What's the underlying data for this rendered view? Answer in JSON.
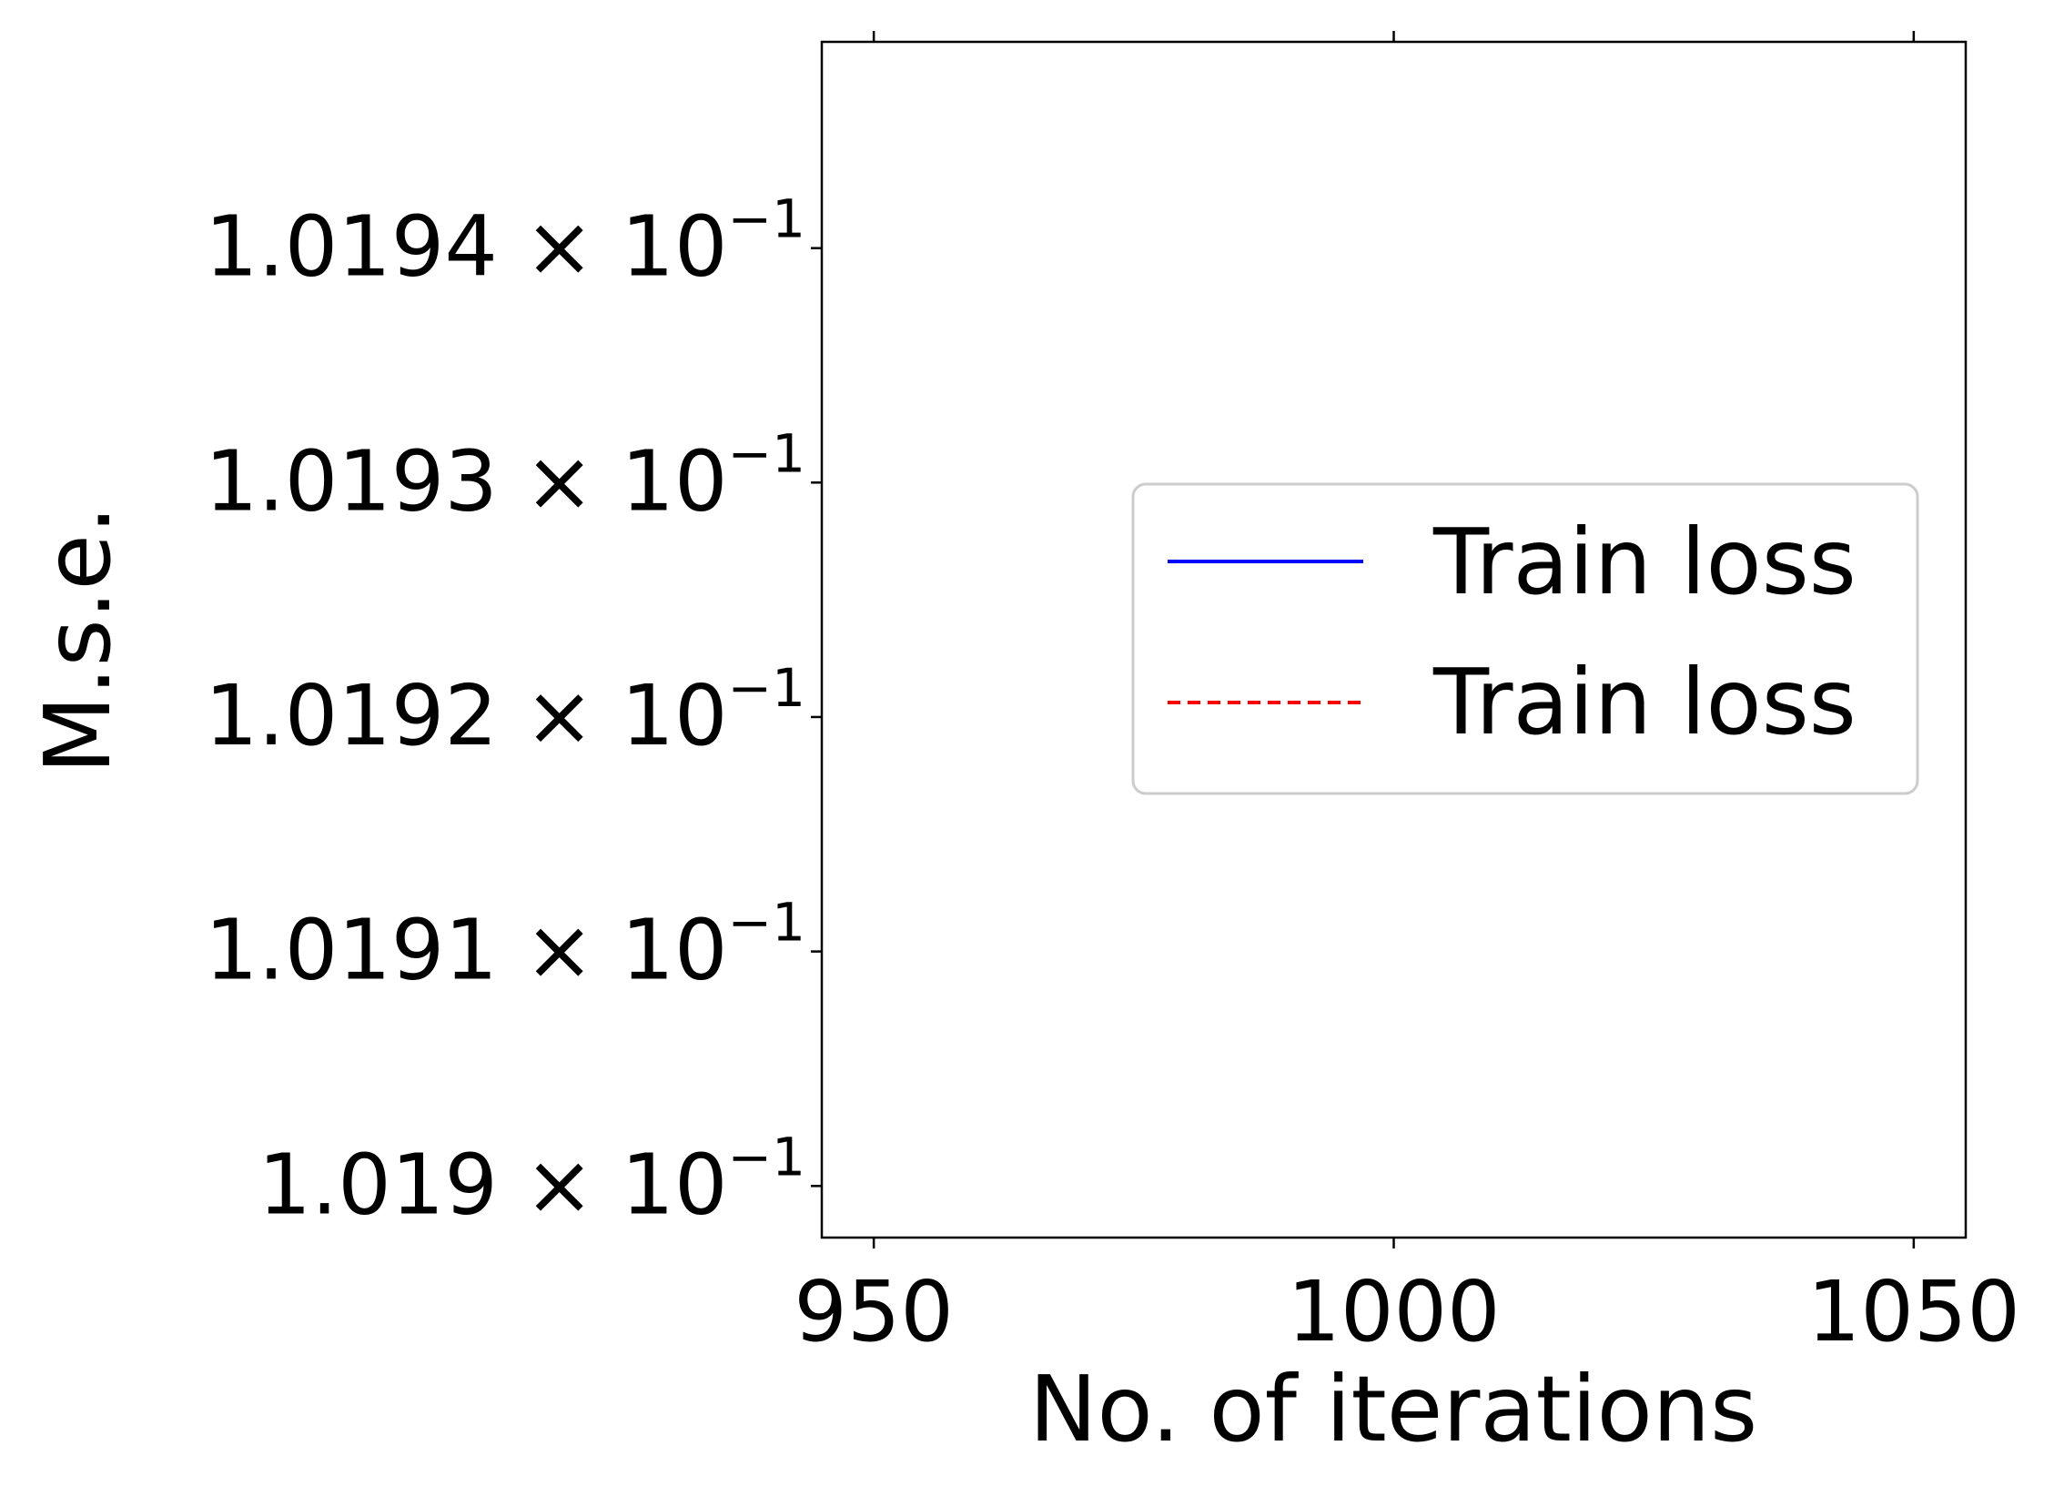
{
  "chart_data": {
    "type": "line",
    "title": "",
    "xlabel": "No. of iterations",
    "ylabel": "M.s.e.",
    "xlim": [
      945,
      1055
    ],
    "ylim": [
      0.1018978,
      0.1019488
    ],
    "yscale": "log",
    "grid": false,
    "x_ticks": [
      {
        "value": 950,
        "label": "950"
      },
      {
        "value": 1000,
        "label": "1000"
      },
      {
        "value": 1050,
        "label": "1050"
      }
    ],
    "y_ticks": [
      {
        "value": 0.10194,
        "mantissa": "1.0194",
        "times": "×",
        "base": "10",
        "exponent": "−1"
      },
      {
        "value": 0.10193,
        "mantissa": "1.0193",
        "times": "×",
        "base": "10",
        "exponent": "−1"
      },
      {
        "value": 0.10192,
        "mantissa": "1.0192",
        "times": "×",
        "base": "10",
        "exponent": "−1"
      },
      {
        "value": 0.10191,
        "mantissa": "1.0191",
        "times": "×",
        "base": "10",
        "exponent": "−1"
      },
      {
        "value": 0.1019,
        "mantissa": "1.019",
        "times": "×",
        "base": "10",
        "exponent": "−1"
      }
    ],
    "series": [
      {
        "name": "Train loss",
        "color": "#0000ff",
        "linestyle": "solid",
        "x": [],
        "y": []
      },
      {
        "name": "Train loss",
        "color": "#ff0000",
        "linestyle": "dashed",
        "x": [],
        "y": []
      }
    ],
    "legend_position": "center-right"
  }
}
